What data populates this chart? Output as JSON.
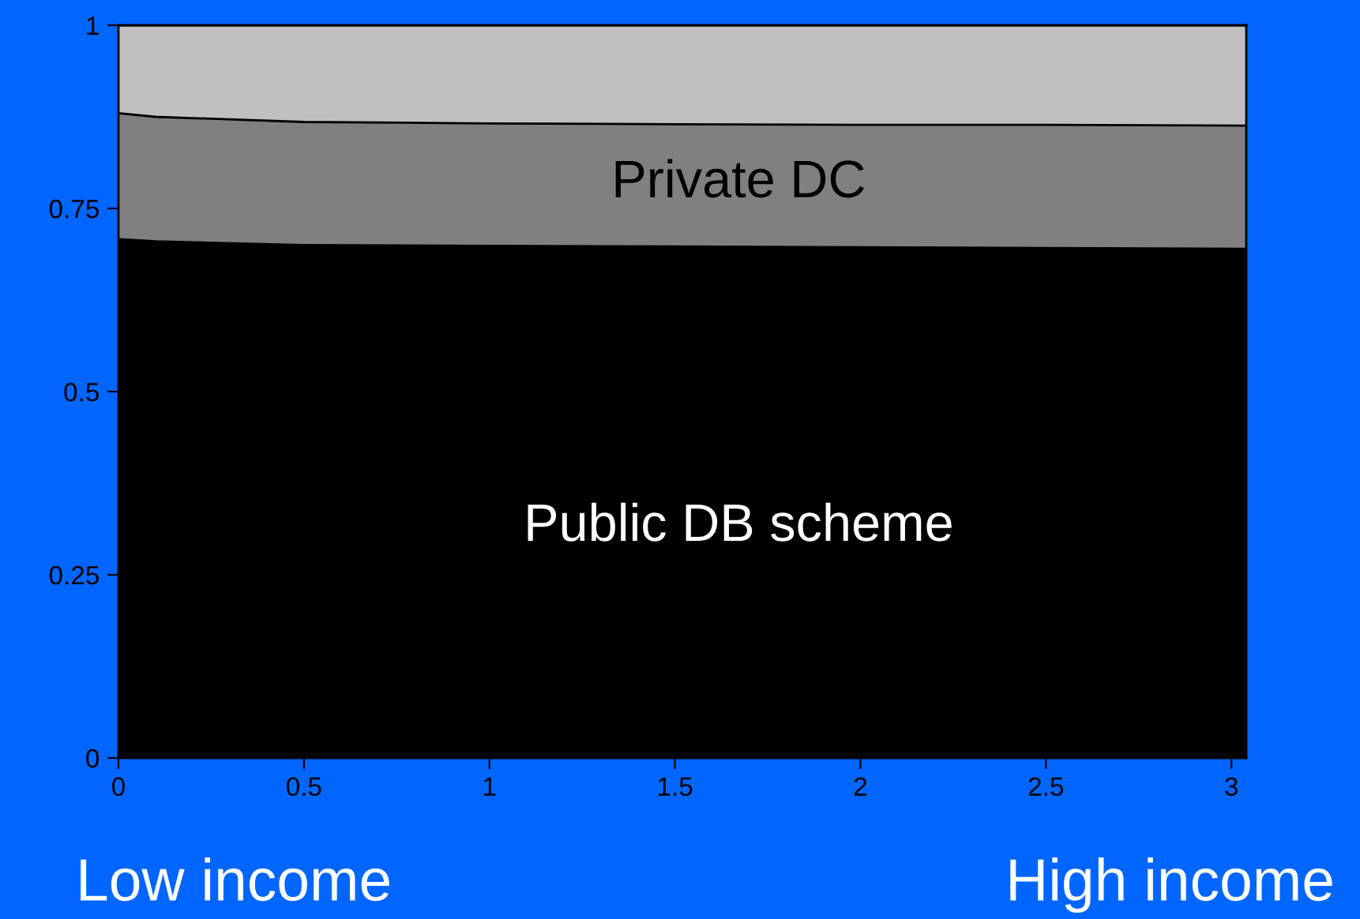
{
  "chart_data": {
    "type": "area",
    "stacked": true,
    "x": [
      0,
      0.1,
      0.5,
      1,
      1.5,
      2,
      2.5,
      3.04
    ],
    "series": [
      {
        "name": "Public DB scheme",
        "color": "#000000",
        "values": [
          0.708,
          0.705,
          0.7,
          0.699,
          0.698,
          0.697,
          0.696,
          0.695
        ]
      },
      {
        "name": "Private DC",
        "color": "#808080",
        "values": [
          0.172,
          0.17,
          0.168,
          0.167,
          0.167,
          0.167,
          0.168,
          0.168
        ]
      },
      {
        "color": "#c0c0c0",
        "values": [
          0.12,
          0.125,
          0.132,
          0.134,
          0.135,
          0.136,
          0.136,
          0.137
        ]
      }
    ],
    "xlim": [
      0,
      3.04
    ],
    "ylim": [
      0,
      1
    ],
    "xticks": [
      0,
      0.5,
      1,
      1.5,
      2,
      2.5,
      3
    ],
    "yticks": [
      0,
      0.25,
      0.5,
      0.75,
      1
    ],
    "annotations": [
      "Low income",
      "High income"
    ]
  }
}
